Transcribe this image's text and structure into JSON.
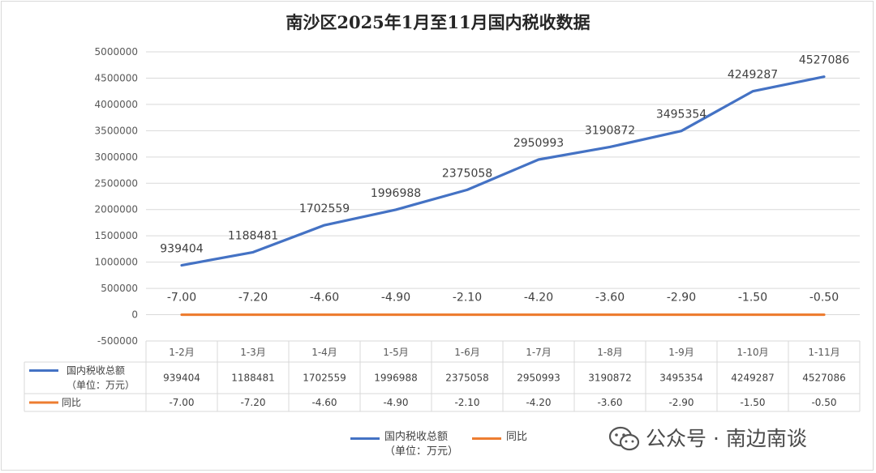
{
  "chart_data": {
    "type": "line",
    "title": "南沙区2025年1月至11月国内税收数据",
    "categories": [
      "1-2月",
      "1-3月",
      "1-4月",
      "1-5月",
      "1-6月",
      "1-7月",
      "1-8月",
      "1-9月",
      "1-10月",
      "1-11月"
    ],
    "series": [
      {
        "name": "国内税收总额\n（单位：万元）",
        "color": "#4472c4",
        "values": [
          939404,
          1188481,
          1702559,
          1996988,
          2375058,
          2950993,
          3190872,
          3495354,
          4249287,
          4527086
        ],
        "labels": [
          "939404",
          "1188481",
          "1702559",
          "1996988",
          "2375058",
          "2950993",
          "3190872",
          "3495354",
          "4249287",
          "4527086"
        ]
      },
      {
        "name": "同比",
        "color": "#ed7d31",
        "values": [
          -7.0,
          -7.2,
          -4.6,
          -4.9,
          -2.1,
          -4.2,
          -3.6,
          -2.9,
          -1.5,
          -0.5
        ],
        "labels": [
          "-7.00",
          "-7.20",
          "-4.60",
          "-4.90",
          "-2.10",
          "-4.20",
          "-3.60",
          "-2.90",
          "-1.50",
          "-0.50"
        ]
      }
    ],
    "yticks": [
      "5000000",
      "4500000",
      "4000000",
      "3500000",
      "3000000",
      "2500000",
      "2000000",
      "1500000",
      "1000000",
      "500000",
      "0",
      "-500000"
    ],
    "ylim": [
      -500000,
      5000000
    ],
    "grid": true,
    "data_table": true,
    "legend_position": "bottom"
  },
  "legend": {
    "item1": "国内税收总额\n（单位：万元）",
    "item2": "同比"
  },
  "watermark": {
    "text": "公众号 · 南边南谈",
    "logo": "wechat-icon"
  }
}
